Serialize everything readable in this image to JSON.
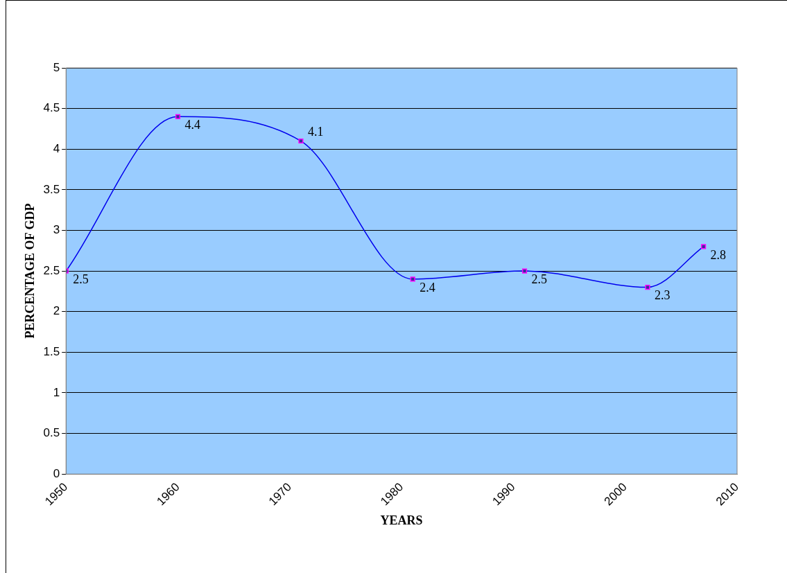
{
  "chart_data": {
    "type": "line",
    "xlabel": "YEARS",
    "ylabel": "PERCENTAGE OF GDP",
    "x": [
      1950,
      1960,
      1971,
      1981,
      1991,
      2002,
      2007
    ],
    "series": [
      {
        "color": "#0000ee",
        "values": [
          2.5,
          4.4,
          4.1,
          2.4,
          2.5,
          2.3,
          2.8
        ]
      }
    ],
    "xlim": [
      1950,
      2010
    ],
    "xticks": [
      1950,
      1960,
      1970,
      1980,
      1990,
      2000,
      2010
    ],
    "ylim": [
      0,
      5
    ],
    "yticks": [
      0,
      0.5,
      1,
      1.5,
      2,
      2.5,
      3,
      3.5,
      4,
      4.5,
      5
    ],
    "grid": "y",
    "legend": false,
    "marker": "square",
    "line_style": "solid",
    "data_labels": true
  }
}
